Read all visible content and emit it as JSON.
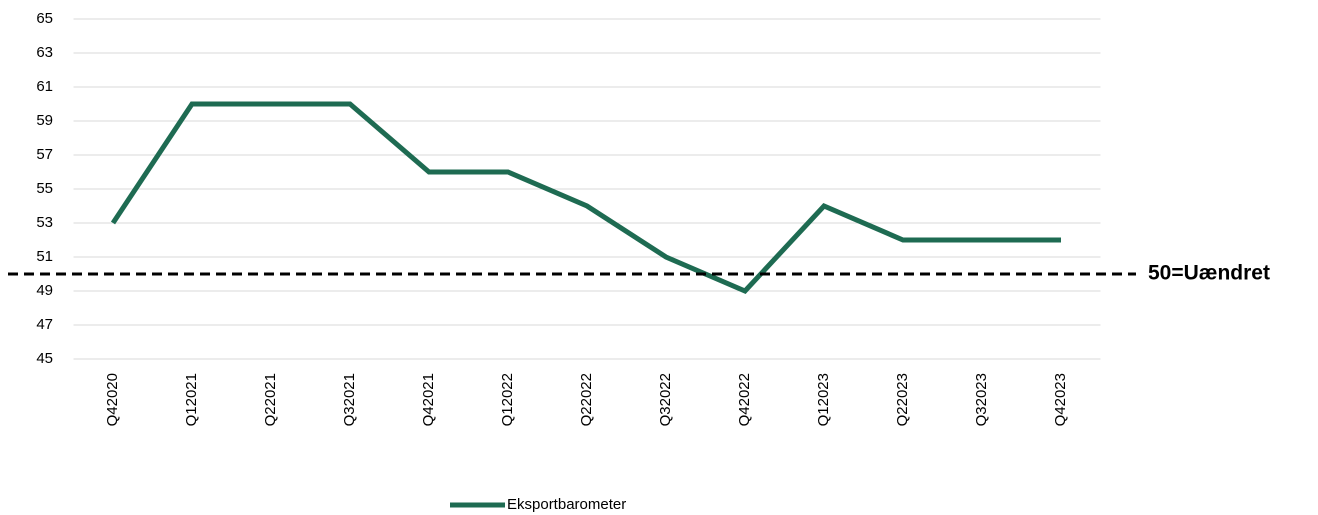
{
  "chart_data": {
    "type": "line",
    "categories": [
      "Q42020",
      "Q12021",
      "Q22021",
      "Q32021",
      "Q42021",
      "Q12022",
      "Q22022",
      "Q32022",
      "Q42022",
      "Q12023",
      "Q22023",
      "Q32023",
      "Q42023"
    ],
    "series": [
      {
        "name": "Eksportbarometer",
        "color": "#1e6b52",
        "values": [
          53,
          60,
          60,
          60,
          56,
          56,
          54,
          51,
          49,
          54,
          52,
          52,
          52
        ]
      }
    ],
    "ylim": [
      45,
      65
    ],
    "yticks": [
      45,
      47,
      49,
      51,
      53,
      55,
      57,
      59,
      61,
      63,
      65
    ],
    "grid": true,
    "reference_line": {
      "value": 50,
      "label": "50=Uændret"
    },
    "legend": "bottom"
  }
}
